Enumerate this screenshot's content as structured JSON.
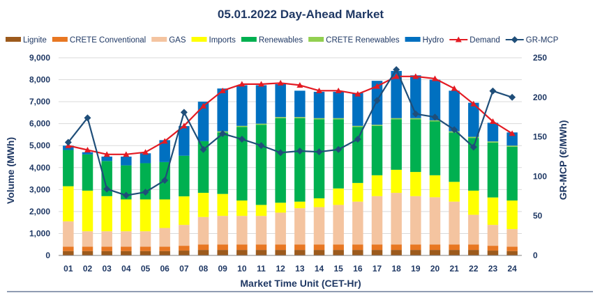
{
  "chart_data": {
    "type": "bar",
    "subtype": "stacked-bar-with-lines",
    "title": "05.01.2022  Day-Ahead Market",
    "xlabel": "Market Time Unit (CET-Hr)",
    "ylabel": "Volume (MWh)",
    "y2label": "GR-MCP (€/MWh)",
    "ylim": [
      0,
      9000
    ],
    "yticks": [
      0,
      1000,
      2000,
      3000,
      4000,
      5000,
      6000,
      7000,
      8000,
      9000
    ],
    "ytick_labels": [
      "0",
      "1,000",
      "2,000",
      "3,000",
      "4,000",
      "5,000",
      "6,000",
      "7,000",
      "8,000",
      "9,000"
    ],
    "y2lim": [
      0,
      250
    ],
    "y2ticks": [
      0,
      50,
      100,
      150,
      200,
      250
    ],
    "y2tick_labels": [
      "0",
      "50",
      "100",
      "150",
      "200",
      "250"
    ],
    "categories": [
      "01",
      "02",
      "03",
      "04",
      "05",
      "06",
      "07",
      "08",
      "09",
      "10",
      "11",
      "12",
      "13",
      "14",
      "15",
      "16",
      "17",
      "18",
      "19",
      "20",
      "21",
      "22",
      "23",
      "24"
    ],
    "grid": true,
    "legend_position": "top",
    "stacked_series": [
      {
        "name": "Lignite",
        "color": "#9c5a1c",
        "values": [
          200,
          200,
          200,
          200,
          200,
          200,
          220,
          250,
          250,
          250,
          250,
          250,
          250,
          250,
          250,
          250,
          250,
          250,
          250,
          250,
          250,
          250,
          220,
          200
        ]
      },
      {
        "name": "CRETE Conventional",
        "color": "#e87722",
        "values": [
          200,
          200,
          200,
          200,
          200,
          200,
          220,
          250,
          250,
          250,
          250,
          250,
          250,
          250,
          250,
          250,
          250,
          250,
          250,
          250,
          250,
          250,
          220,
          200
        ]
      },
      {
        "name": "GAS",
        "color": "#f4c4a0",
        "values": [
          1150,
          700,
          700,
          700,
          700,
          850,
          950,
          1250,
          1300,
          1300,
          1300,
          1450,
          1650,
          1700,
          1800,
          1950,
          2200,
          2350,
          2200,
          2150,
          1950,
          1350,
          950,
          800
        ]
      },
      {
        "name": "Imports",
        "color": "#ffff00",
        "values": [
          1600,
          1850,
          1600,
          1450,
          1450,
          1300,
          1300,
          1100,
          1000,
          700,
          500,
          450,
          300,
          400,
          750,
          850,
          950,
          1050,
          1100,
          1000,
          900,
          1100,
          1250,
          1300
        ]
      },
      {
        "name": "Renewables",
        "color": "#00b050",
        "values": [
          1650,
          1650,
          1600,
          1550,
          1650,
          1700,
          1850,
          2350,
          2800,
          3350,
          3650,
          3850,
          3800,
          3600,
          3150,
          2550,
          2250,
          2300,
          2400,
          2450,
          2250,
          2400,
          2500,
          2450
        ]
      },
      {
        "name": "CRETE Renewables",
        "color": "#92d050",
        "values": [
          0,
          0,
          0,
          0,
          0,
          0,
          0,
          0,
          50,
          50,
          50,
          50,
          50,
          50,
          50,
          50,
          50,
          50,
          50,
          50,
          50,
          50,
          50,
          50
        ]
      },
      {
        "name": "Hydro",
        "color": "#0070c0",
        "values": [
          200,
          100,
          200,
          400,
          450,
          1000,
          1350,
          1800,
          1950,
          1850,
          1750,
          1500,
          1200,
          1200,
          1200,
          1500,
          2000,
          2150,
          1950,
          1850,
          1850,
          1550,
          850,
          600
        ]
      }
    ],
    "line_series": [
      {
        "name": "Demand",
        "color": "#e31b23",
        "marker": "triangle",
        "axis": "left",
        "values": [
          5000,
          4800,
          4600,
          4600,
          4700,
          5200,
          5900,
          6800,
          7500,
          7800,
          7800,
          7850,
          7750,
          7500,
          7500,
          7350,
          7700,
          8150,
          8150,
          8050,
          7600,
          6900,
          6100,
          5550
        ]
      },
      {
        "name": "GR-MCP",
        "color": "#1f4e79",
        "marker": "diamond",
        "axis": "right",
        "values": [
          143,
          174,
          84,
          76,
          80,
          95,
          181,
          134,
          154,
          147,
          139,
          130,
          132,
          131,
          134,
          147,
          196,
          235,
          179,
          175,
          159,
          137,
          208,
          200
        ]
      }
    ]
  }
}
